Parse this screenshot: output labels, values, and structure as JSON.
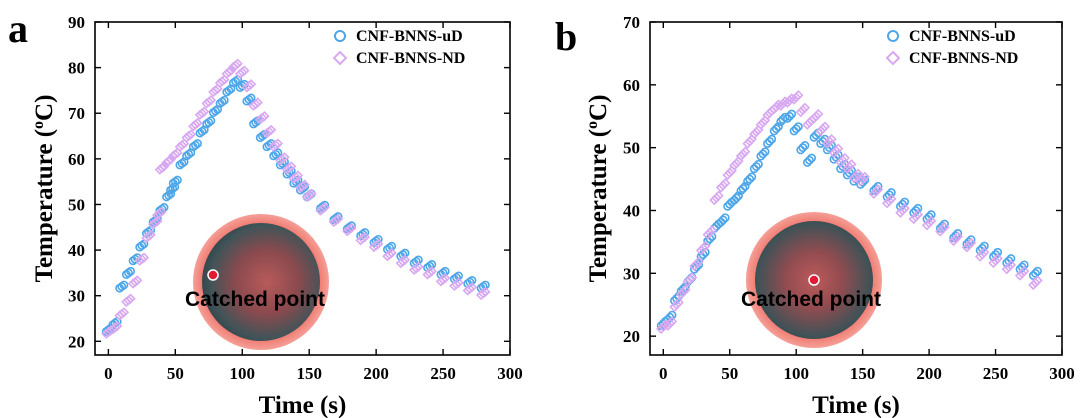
{
  "chart_data": [
    {
      "type": "scatter",
      "panel_label": "a",
      "xlabel": "Time (s)",
      "ylabel_base": "Temperature (",
      "ylabel_sup": "o",
      "ylabel_unit": "C)",
      "xlim": [
        -10,
        300
      ],
      "ylim": [
        17,
        90
      ],
      "xticks": [
        0,
        50,
        100,
        150,
        200,
        250,
        300
      ],
      "yticks": [
        20,
        30,
        40,
        50,
        60,
        70,
        80,
        90
      ],
      "legend_position": "top-right",
      "inset_label": "Catched point",
      "inset_marker": "left",
      "series": [
        {
          "name": "CNF-BNNS-uD",
          "color": "#4da6e8",
          "marker": "circle",
          "points": [
            [
              0,
              22.5
            ],
            [
              5,
              24
            ],
            [
              10,
              32
            ],
            [
              15,
              35
            ],
            [
              20,
              38
            ],
            [
              25,
              41
            ],
            [
              30,
              44
            ],
            [
              35,
              46.5
            ],
            [
              40,
              49
            ],
            [
              45,
              52
            ],
            [
              48,
              53.5
            ],
            [
              50,
              55
            ],
            [
              55,
              59
            ],
            [
              60,
              61
            ],
            [
              65,
              63
            ],
            [
              70,
              66
            ],
            [
              75,
              68
            ],
            [
              80,
              70.5
            ],
            [
              85,
              72.5
            ],
            [
              90,
              75
            ],
            [
              95,
              77
            ],
            [
              100,
              76
            ],
            [
              105,
              73
            ],
            [
              110,
              68
            ],
            [
              115,
              65
            ],
            [
              120,
              63
            ],
            [
              125,
              61
            ],
            [
              130,
              59
            ],
            [
              135,
              57
            ],
            [
              140,
              55
            ],
            [
              145,
              53.5
            ],
            [
              150,
              52
            ],
            [
              160,
              49.5
            ],
            [
              170,
              47
            ],
            [
              180,
              45
            ],
            [
              190,
              43.5
            ],
            [
              200,
              42
            ],
            [
              210,
              40.5
            ],
            [
              220,
              39
            ],
            [
              230,
              37.5
            ],
            [
              240,
              36.5
            ],
            [
              250,
              35
            ],
            [
              260,
              34
            ],
            [
              270,
              33
            ],
            [
              280,
              32
            ]
          ]
        },
        {
          "name": "CNF-BNNS-ND",
          "color": "#d8a8f0",
          "marker": "diamond",
          "points": [
            [
              0,
              22
            ],
            [
              5,
              23
            ],
            [
              10,
              26
            ],
            [
              15,
              29
            ],
            [
              20,
              33
            ],
            [
              25,
              38
            ],
            [
              30,
              43
            ],
            [
              35,
              46
            ],
            [
              38,
              48
            ],
            [
              40,
              58
            ],
            [
              45,
              59.5
            ],
            [
              50,
              61
            ],
            [
              55,
              63
            ],
            [
              60,
              65
            ],
            [
              65,
              67.5
            ],
            [
              70,
              70
            ],
            [
              75,
              72.5
            ],
            [
              80,
              75
            ],
            [
              85,
              77
            ],
            [
              90,
              79
            ],
            [
              95,
              80.5
            ],
            [
              100,
              79
            ],
            [
              105,
              76
            ],
            [
              110,
              72
            ],
            [
              115,
              69
            ],
            [
              120,
              66
            ],
            [
              125,
              63
            ],
            [
              130,
              60
            ],
            [
              135,
              58
            ],
            [
              140,
              56
            ],
            [
              145,
              54
            ],
            [
              150,
              52
            ],
            [
              160,
              49
            ],
            [
              170,
              46.5
            ],
            [
              180,
              44.5
            ],
            [
              190,
              42.5
            ],
            [
              200,
              41
            ],
            [
              210,
              39
            ],
            [
              220,
              37.5
            ],
            [
              230,
              36
            ],
            [
              240,
              35
            ],
            [
              250,
              33.5
            ],
            [
              260,
              32.5
            ],
            [
              270,
              31.5
            ],
            [
              280,
              30.5
            ]
          ]
        }
      ]
    },
    {
      "type": "scatter",
      "panel_label": "b",
      "xlabel": "Time (s)",
      "ylabel_base": "Temperature (",
      "ylabel_sup": "o",
      "ylabel_unit": "C)",
      "xlim": [
        -10,
        300
      ],
      "ylim": [
        17,
        70
      ],
      "xticks": [
        0,
        50,
        100,
        150,
        200,
        250,
        300
      ],
      "yticks": [
        20,
        30,
        40,
        50,
        60,
        70
      ],
      "legend_position": "top-right",
      "inset_label": "Catched point",
      "inset_marker": "center",
      "series": [
        {
          "name": "CNF-BNNS-uD",
          "color": "#4da6e8",
          "marker": "circle",
          "points": [
            [
              0,
              22
            ],
            [
              5,
              23
            ],
            [
              10,
              26
            ],
            [
              15,
              27.5
            ],
            [
              20,
              29
            ],
            [
              25,
              31
            ],
            [
              30,
              33
            ],
            [
              35,
              35.5
            ],
            [
              40,
              37.5
            ],
            [
              45,
              38.5
            ],
            [
              50,
              41
            ],
            [
              55,
              42
            ],
            [
              60,
              43.5
            ],
            [
              65,
              45
            ],
            [
              70,
              47
            ],
            [
              75,
              49
            ],
            [
              80,
              51
            ],
            [
              85,
              53
            ],
            [
              90,
              54.5
            ],
            [
              95,
              55
            ],
            [
              100,
              53
            ],
            [
              105,
              50
            ],
            [
              110,
              48
            ],
            [
              115,
              52
            ],
            [
              120,
              51
            ],
            [
              125,
              50
            ],
            [
              130,
              48.5
            ],
            [
              135,
              47
            ],
            [
              140,
              46
            ],
            [
              145,
              45
            ],
            [
              150,
              44.5
            ],
            [
              160,
              43.5
            ],
            [
              170,
              42.5
            ],
            [
              180,
              41
            ],
            [
              190,
              40
            ],
            [
              200,
              39
            ],
            [
              210,
              37.5
            ],
            [
              220,
              36
            ],
            [
              230,
              35
            ],
            [
              240,
              34
            ],
            [
              250,
              33
            ],
            [
              260,
              32
            ],
            [
              270,
              31
            ],
            [
              280,
              30
            ]
          ]
        },
        {
          "name": "CNF-BNNS-ND",
          "color": "#d8a8f0",
          "marker": "diamond",
          "points": [
            [
              0,
              21.5
            ],
            [
              5,
              22
            ],
            [
              10,
              25
            ],
            [
              15,
              27
            ],
            [
              20,
              29
            ],
            [
              25,
              31.5
            ],
            [
              30,
              34
            ],
            [
              35,
              36.5
            ],
            [
              40,
              42
            ],
            [
              45,
              44
            ],
            [
              50,
              46
            ],
            [
              55,
              47.5
            ],
            [
              60,
              49
            ],
            [
              65,
              51
            ],
            [
              70,
              52.5
            ],
            [
              75,
              54
            ],
            [
              80,
              55.5
            ],
            [
              85,
              56.5
            ],
            [
              90,
              57
            ],
            [
              95,
              57.5
            ],
            [
              100,
              58
            ],
            [
              105,
              56
            ],
            [
              110,
              54
            ],
            [
              115,
              55
            ],
            [
              120,
              53
            ],
            [
              125,
              51
            ],
            [
              130,
              49.5
            ],
            [
              135,
              48
            ],
            [
              140,
              47
            ],
            [
              145,
              45.5
            ],
            [
              150,
              45
            ],
            [
              160,
              43
            ],
            [
              170,
              41.5
            ],
            [
              180,
              40
            ],
            [
              190,
              39
            ],
            [
              200,
              38
            ],
            [
              210,
              37
            ],
            [
              220,
              35.5
            ],
            [
              230,
              34.5
            ],
            [
              240,
              33
            ],
            [
              250,
              32
            ],
            [
              260,
              31
            ],
            [
              270,
              30
            ],
            [
              280,
              28.5
            ]
          ]
        }
      ]
    }
  ]
}
